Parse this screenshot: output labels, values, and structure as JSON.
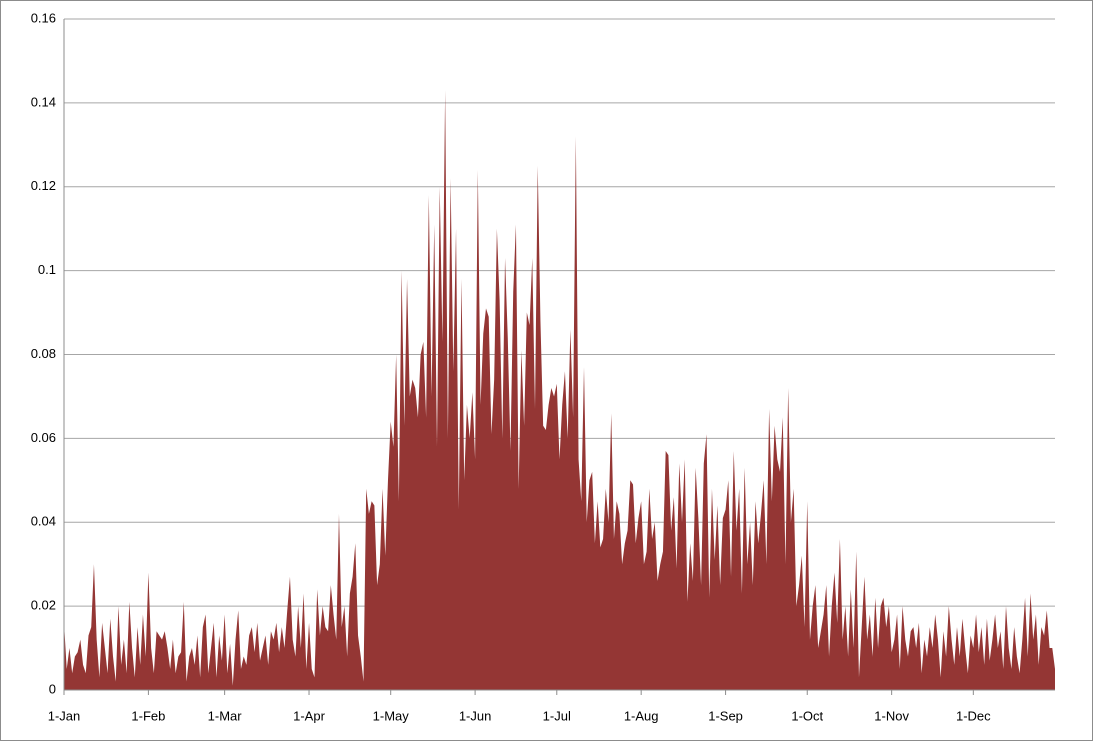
{
  "chart_data": {
    "type": "area",
    "color": "#943634",
    "grid": true,
    "ylim": [
      0,
      0.16
    ],
    "yticks": [
      0,
      0.02,
      0.04,
      0.06,
      0.08,
      0.1,
      0.12,
      0.14,
      0.16
    ],
    "categories": [
      "1-Jan",
      null,
      null,
      null,
      null,
      null,
      null,
      null,
      null,
      null,
      null,
      null,
      null,
      null,
      null,
      null,
      null,
      null,
      null,
      null,
      null,
      null,
      null,
      null,
      null,
      null,
      null,
      null,
      null,
      null,
      null,
      "1-Feb",
      null,
      null,
      null,
      null,
      null,
      null,
      null,
      null,
      null,
      null,
      null,
      null,
      null,
      null,
      null,
      null,
      null,
      null,
      null,
      null,
      null,
      null,
      null,
      null,
      null,
      null,
      null,
      "1-Mar",
      null,
      null,
      null,
      null,
      null,
      null,
      null,
      null,
      null,
      null,
      null,
      null,
      null,
      null,
      null,
      null,
      null,
      null,
      null,
      null,
      null,
      null,
      null,
      null,
      null,
      null,
      null,
      null,
      null,
      null,
      "1-Apr",
      null,
      null,
      null,
      null,
      null,
      null,
      null,
      null,
      null,
      null,
      null,
      null,
      null,
      null,
      null,
      null,
      null,
      null,
      null,
      null,
      null,
      null,
      null,
      null,
      null,
      null,
      null,
      null,
      null,
      "1-May",
      null,
      null,
      null,
      null,
      null,
      null,
      null,
      null,
      null,
      null,
      null,
      null,
      null,
      null,
      null,
      null,
      null,
      null,
      null,
      null,
      null,
      null,
      null,
      null,
      null,
      null,
      null,
      null,
      null,
      null,
      "1-Jun",
      null,
      null,
      null,
      null,
      null,
      null,
      null,
      null,
      null,
      null,
      null,
      null,
      null,
      null,
      null,
      null,
      null,
      null,
      null,
      null,
      null,
      null,
      null,
      null,
      null,
      null,
      null,
      null,
      null,
      "1-Jul",
      null,
      null,
      null,
      null,
      null,
      null,
      null,
      null,
      null,
      null,
      null,
      null,
      null,
      null,
      null,
      null,
      null,
      null,
      null,
      null,
      null,
      null,
      null,
      null,
      null,
      null,
      null,
      null,
      null,
      null,
      "1-Aug",
      null,
      null,
      null,
      null,
      null,
      null,
      null,
      null,
      null,
      null,
      null,
      null,
      null,
      null,
      null,
      null,
      null,
      null,
      null,
      null,
      null,
      null,
      null,
      null,
      null,
      null,
      null,
      null,
      null,
      null,
      "1-Sep",
      null,
      null,
      null,
      null,
      null,
      null,
      null,
      null,
      null,
      null,
      null,
      null,
      null,
      null,
      null,
      null,
      null,
      null,
      null,
      null,
      null,
      null,
      null,
      null,
      null,
      null,
      null,
      null,
      null,
      "1-Oct",
      null,
      null,
      null,
      null,
      null,
      null,
      null,
      null,
      null,
      null,
      null,
      null,
      null,
      null,
      null,
      null,
      null,
      null,
      null,
      null,
      null,
      null,
      null,
      null,
      null,
      null,
      null,
      null,
      null,
      null,
      "1-Nov",
      null,
      null,
      null,
      null,
      null,
      null,
      null,
      null,
      null,
      null,
      null,
      null,
      null,
      null,
      null,
      null,
      null,
      null,
      null,
      null,
      null,
      null,
      null,
      null,
      null,
      null,
      null,
      null,
      null,
      "1-Dec",
      null,
      null,
      null,
      null,
      null,
      null,
      null,
      null,
      null,
      null,
      null,
      null,
      null,
      null,
      null,
      null,
      null,
      null,
      null,
      null,
      null,
      null,
      null,
      null,
      null,
      null,
      null,
      null,
      null,
      null
    ],
    "values": [
      0.016,
      0.005,
      0.01,
      0.004,
      0.008,
      0.009,
      0.012,
      0.006,
      0.004,
      0.013,
      0.015,
      0.03,
      0.012,
      0.003,
      0.016,
      0.01,
      0.004,
      0.017,
      0.008,
      0.002,
      0.02,
      0.006,
      0.012,
      0.004,
      0.021,
      0.01,
      0.003,
      0.015,
      0.006,
      0.018,
      0.008,
      0.028,
      0.01,
      0.004,
      0.014,
      0.013,
      0.012,
      0.014,
      0.01,
      0.005,
      0.012,
      0.004,
      0.008,
      0.009,
      0.021,
      0.002,
      0.008,
      0.01,
      0.006,
      0.013,
      0.003,
      0.015,
      0.018,
      0.004,
      0.01,
      0.016,
      0.003,
      0.013,
      0.007,
      0.018,
      0.004,
      0.011,
      0.001,
      0.012,
      0.019,
      0.005,
      0.008,
      0.006,
      0.013,
      0.015,
      0.009,
      0.016,
      0.007,
      0.01,
      0.013,
      0.006,
      0.014,
      0.012,
      0.016,
      0.009,
      0.015,
      0.01,
      0.019,
      0.027,
      0.012,
      0.008,
      0.02,
      0.01,
      0.023,
      0.005,
      0.016,
      0.005,
      0.003,
      0.024,
      0.013,
      0.02,
      0.015,
      0.014,
      0.025,
      0.018,
      0.012,
      0.042,
      0.015,
      0.02,
      0.008,
      0.023,
      0.027,
      0.035,
      0.013,
      0.008,
      0.002,
      0.048,
      0.042,
      0.045,
      0.044,
      0.025,
      0.03,
      0.048,
      0.032,
      0.05,
      0.064,
      0.058,
      0.08,
      0.045,
      0.1,
      0.063,
      0.098,
      0.07,
      0.074,
      0.072,
      0.065,
      0.08,
      0.083,
      0.065,
      0.118,
      0.07,
      0.111,
      0.058,
      0.12,
      0.083,
      0.143,
      0.06,
      0.122,
      0.076,
      0.11,
      0.043,
      0.098,
      0.05,
      0.068,
      0.06,
      0.071,
      0.055,
      0.124,
      0.068,
      0.085,
      0.091,
      0.089,
      0.061,
      0.074,
      0.11,
      0.093,
      0.06,
      0.103,
      0.084,
      0.057,
      0.095,
      0.111,
      0.048,
      0.081,
      0.063,
      0.09,
      0.087,
      0.103,
      0.067,
      0.125,
      0.088,
      0.063,
      0.062,
      0.068,
      0.072,
      0.07,
      0.073,
      0.055,
      0.068,
      0.076,
      0.06,
      0.086,
      0.065,
      0.132,
      0.055,
      0.045,
      0.077,
      0.04,
      0.05,
      0.052,
      0.035,
      0.045,
      0.034,
      0.036,
      0.048,
      0.04,
      0.066,
      0.036,
      0.045,
      0.042,
      0.03,
      0.035,
      0.038,
      0.05,
      0.049,
      0.035,
      0.041,
      0.045,
      0.03,
      0.033,
      0.048,
      0.036,
      0.04,
      0.026,
      0.03,
      0.033,
      0.057,
      0.056,
      0.038,
      0.046,
      0.029,
      0.054,
      0.04,
      0.055,
      0.021,
      0.035,
      0.026,
      0.053,
      0.041,
      0.025,
      0.054,
      0.061,
      0.022,
      0.048,
      0.031,
      0.044,
      0.025,
      0.041,
      0.043,
      0.05,
      0.027,
      0.057,
      0.038,
      0.048,
      0.023,
      0.053,
      0.03,
      0.04,
      0.025,
      0.045,
      0.035,
      0.042,
      0.05,
      0.03,
      0.067,
      0.045,
      0.063,
      0.055,
      0.052,
      0.065,
      0.03,
      0.072,
      0.04,
      0.048,
      0.02,
      0.025,
      0.032,
      0.015,
      0.045,
      0.012,
      0.02,
      0.025,
      0.01,
      0.014,
      0.018,
      0.025,
      0.008,
      0.02,
      0.028,
      0.016,
      0.036,
      0.012,
      0.02,
      0.008,
      0.024,
      0.01,
      0.033,
      0.003,
      0.015,
      0.027,
      0.012,
      0.018,
      0.008,
      0.022,
      0.01,
      0.02,
      0.022,
      0.015,
      0.02,
      0.009,
      0.012,
      0.018,
      0.005,
      0.02,
      0.012,
      0.008,
      0.014,
      0.015,
      0.01,
      0.016,
      0.004,
      0.012,
      0.008,
      0.015,
      0.01,
      0.018,
      0.012,
      0.003,
      0.014,
      0.008,
      0.02,
      0.012,
      0.006,
      0.015,
      0.008,
      0.017,
      0.01,
      0.004,
      0.013,
      0.01,
      0.018,
      0.009,
      0.015,
      0.006,
      0.017,
      0.007,
      0.012,
      0.018,
      0.01,
      0.014,
      0.005,
      0.02,
      0.01,
      0.005,
      0.015,
      0.008,
      0.004,
      0.012,
      0.022,
      0.008,
      0.023,
      0.012,
      0.018,
      0.006,
      0.015,
      0.013,
      0.019,
      0.01,
      0.01,
      0.005
    ]
  }
}
